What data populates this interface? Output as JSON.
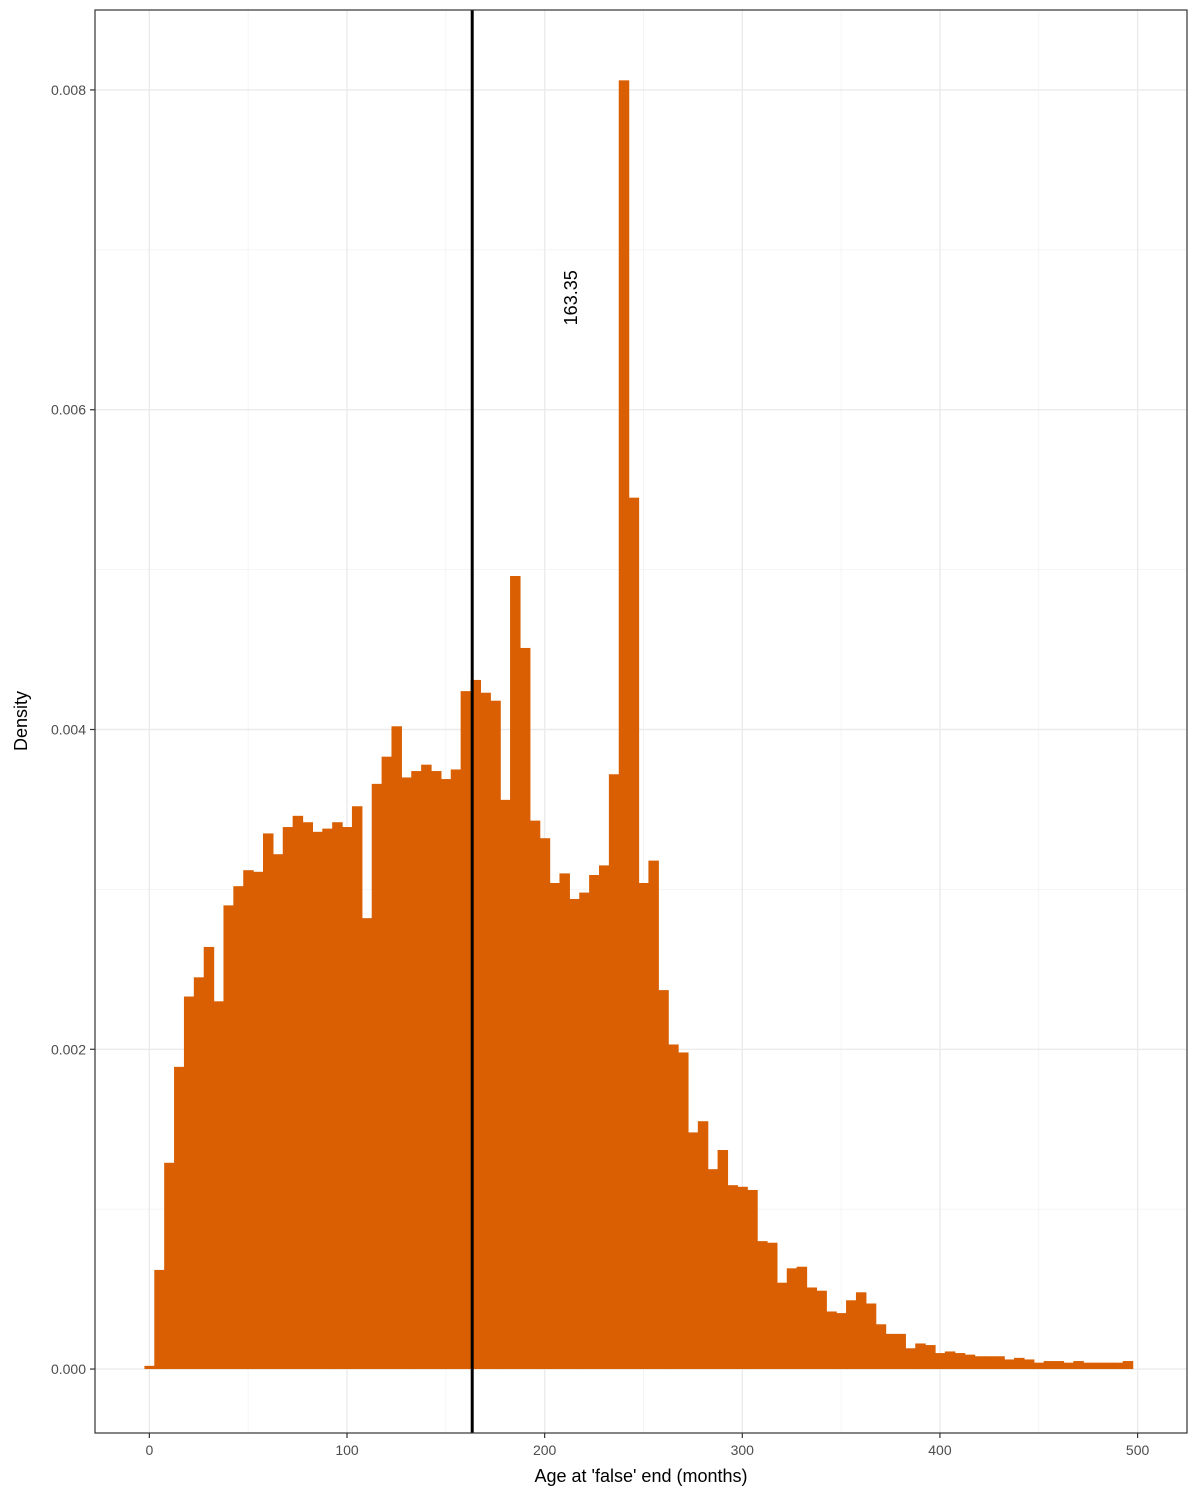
{
  "chart_data": {
    "type": "bar",
    "xlabel": "Age at 'false' end (months)",
    "ylabel": "Density",
    "xlim": [
      -27.5,
      525
    ],
    "ylim": [
      -0.0004,
      0.0085
    ],
    "x_ticks": [
      0,
      100,
      200,
      300,
      400,
      500
    ],
    "x_tick_labels": [
      "0",
      "100",
      "200",
      "300",
      "400",
      "500"
    ],
    "y_ticks": [
      0,
      0.002,
      0.004,
      0.006,
      0.008
    ],
    "y_tick_labels": [
      "0.000",
      "0.002",
      "0.004",
      "0.006",
      "0.008"
    ],
    "grid": true,
    "bin_width": 5,
    "bin_start": -2.5,
    "values": [
      2e-05,
      0.00062,
      0.00129,
      0.00189,
      0.00233,
      0.00245,
      0.00264,
      0.0023,
      0.0029,
      0.00302,
      0.00312,
      0.00311,
      0.00335,
      0.00322,
      0.00339,
      0.00346,
      0.00342,
      0.00336,
      0.00338,
      0.00342,
      0.00339,
      0.00352,
      0.00282,
      0.00366,
      0.00383,
      0.00402,
      0.0037,
      0.00374,
      0.00378,
      0.00374,
      0.00369,
      0.00375,
      0.00424,
      0.00431,
      0.00423,
      0.00418,
      0.00356,
      0.00496,
      0.00451,
      0.00343,
      0.00332,
      0.00304,
      0.0031,
      0.00294,
      0.00298,
      0.00309,
      0.00315,
      0.00372,
      0.00806,
      0.00545,
      0.00304,
      0.00318,
      0.00237,
      0.00203,
      0.00198,
      0.00148,
      0.00155,
      0.00125,
      0.00137,
      0.00115,
      0.00114,
      0.00112,
      0.0008,
      0.00079,
      0.00054,
      0.00063,
      0.00064,
      0.00051,
      0.00049,
      0.00036,
      0.00035,
      0.00043,
      0.00048,
      0.00041,
      0.00028,
      0.00022,
      0.00022,
      0.00013,
      0.00016,
      0.00015,
      0.0001,
      0.00011,
      0.0001,
      9e-05,
      8e-05,
      8e-05,
      8e-05,
      6e-05,
      7e-05,
      6e-05,
      4e-05,
      5e-05,
      5e-05,
      4e-05,
      5e-05,
      4e-05,
      4e-05,
      4e-05,
      4e-05,
      5e-05
    ],
    "fill_color": "#D95F02",
    "vline": {
      "x": 163.35,
      "label": "163.35",
      "color": "#000000"
    },
    "annotation_y": 0.0067
  }
}
